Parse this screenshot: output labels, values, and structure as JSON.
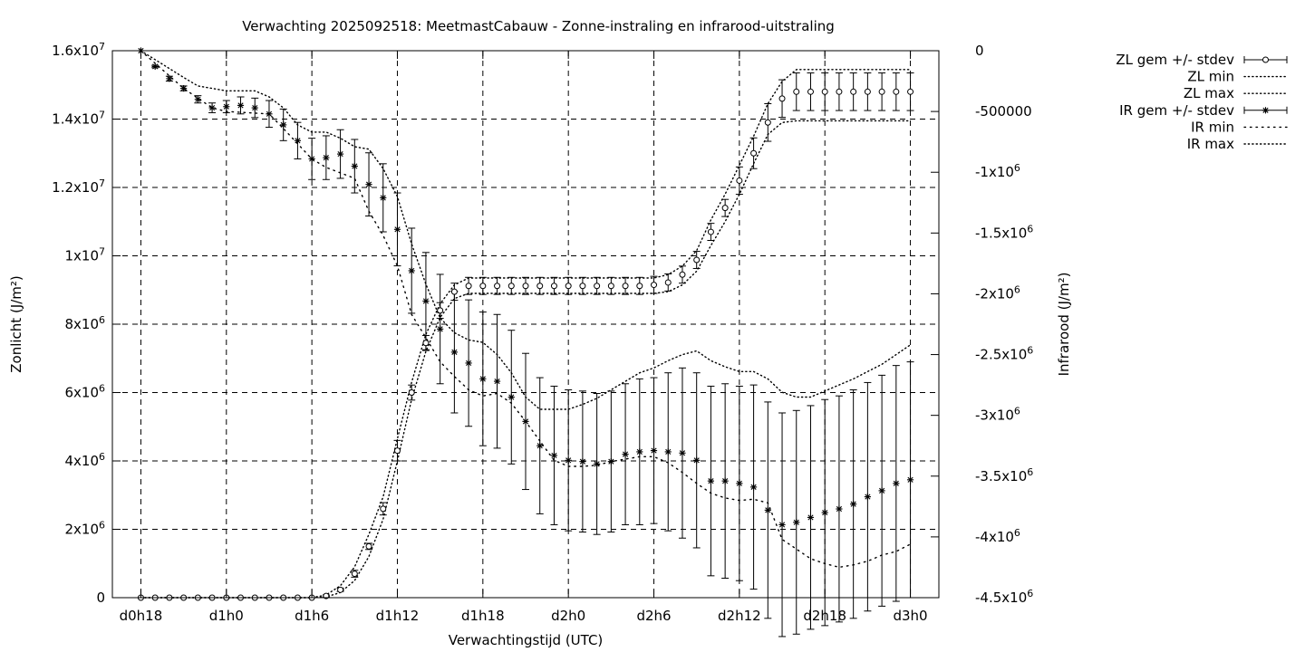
{
  "chart_data": {
    "type": "line",
    "title": "Verwachting 2025092518: MeetmastCabauw - Zonne-instraling en infrarood-uitstraling",
    "xlabel": "Verwachtingstijd (UTC)",
    "ylabel": "Zonlicht (J/m²)",
    "y2label": "Infrarood (J/m²)",
    "x_unit_hours": "lead time in hours (0 = d0h18)",
    "x_ticks": [
      {
        "x": 0,
        "label": "d0h18"
      },
      {
        "x": 6,
        "label": "d1h0"
      },
      {
        "x": 12,
        "label": "d1h6"
      },
      {
        "x": 18,
        "label": "d1h12"
      },
      {
        "x": 24,
        "label": "d1h18"
      },
      {
        "x": 30,
        "label": "d2h0"
      },
      {
        "x": 36,
        "label": "d2h6"
      },
      {
        "x": 42,
        "label": "d2h12"
      },
      {
        "x": 48,
        "label": "d2h18"
      },
      {
        "x": 54,
        "label": "d3h0"
      }
    ],
    "xlim": [
      -2,
      56
    ],
    "ylim": [
      0,
      16000000
    ],
    "y2lim": [
      -4500000,
      0
    ],
    "y_ticks": [
      {
        "v": 0,
        "label": "0"
      },
      {
        "v": 2000000,
        "label": "2x10⁶"
      },
      {
        "v": 4000000,
        "label": "4x10⁶"
      },
      {
        "v": 6000000,
        "label": "6x10⁶"
      },
      {
        "v": 8000000,
        "label": "8x10⁶"
      },
      {
        "v": 10000000,
        "label": "1x10⁷"
      },
      {
        "v": 12000000,
        "label": "1.2x10⁷"
      },
      {
        "v": 14000000,
        "label": "1.4x10⁷"
      },
      {
        "v": 16000000,
        "label": "1.6x10⁷"
      }
    ],
    "y2_ticks": [
      {
        "v": 0,
        "label": "0"
      },
      {
        "v": -500000,
        "label": "-500000"
      },
      {
        "v": -1000000,
        "label": "-1x10⁶"
      },
      {
        "v": -1500000,
        "label": "-1.5x10⁶"
      },
      {
        "v": -2000000,
        "label": "-2x10⁶"
      },
      {
        "v": -2500000,
        "label": "-2.5x10⁶"
      },
      {
        "v": -3000000,
        "label": "-3x10⁶"
      },
      {
        "v": -3500000,
        "label": "-3.5x10⁶"
      },
      {
        "v": -4000000,
        "label": "-4x10⁶"
      },
      {
        "v": -4500000,
        "label": "-4.5x10⁶"
      }
    ],
    "grid": true,
    "legend": "top-right",
    "legend_entries": [
      {
        "label": "ZL gem +/- stdev",
        "style": "errorbar-circle"
      },
      {
        "label": "ZL min",
        "style": "dotted"
      },
      {
        "label": "ZL max",
        "style": "dotted"
      },
      {
        "label": "IR gem +/- stdev",
        "style": "errorbar-star"
      },
      {
        "label": "IR min",
        "style": "dotted-sparse"
      },
      {
        "label": "IR max",
        "style": "dotted"
      }
    ],
    "series": [
      {
        "name": "ZL gem +/- stdev",
        "axis": "y",
        "marker": "circle",
        "x": [
          0,
          1,
          2,
          3,
          4,
          5,
          6,
          7,
          8,
          9,
          10,
          11,
          12,
          13,
          14,
          15,
          16,
          17,
          18,
          19,
          20,
          21,
          22,
          23,
          24,
          25,
          26,
          27,
          28,
          29,
          30,
          31,
          32,
          33,
          34,
          35,
          36,
          37,
          38,
          39,
          40,
          41,
          42,
          43,
          44,
          45,
          46,
          47,
          48,
          49,
          50,
          51,
          52,
          53,
          54
        ],
        "values": [
          0,
          0,
          0,
          0,
          0,
          0,
          0,
          0,
          0,
          0,
          0,
          0,
          0,
          50000,
          230000,
          700000,
          1500000,
          2600000,
          4300000,
          6000000,
          7450000,
          8400000,
          8950000,
          9120000,
          9120000,
          9120000,
          9120000,
          9120000,
          9120000,
          9120000,
          9120000,
          9120000,
          9120000,
          9120000,
          9120000,
          9120000,
          9150000,
          9220000,
          9450000,
          9880000,
          10700000,
          11400000,
          12200000,
          13000000,
          13900000,
          14600000,
          14800000,
          14800000,
          14800000,
          14800000,
          14800000,
          14800000,
          14800000,
          14800000,
          14800000
        ],
        "stdev": [
          0,
          0,
          0,
          0,
          0,
          0,
          0,
          0,
          0,
          0,
          0,
          0,
          0,
          30000,
          50000,
          100000,
          90000,
          180000,
          300000,
          220000,
          220000,
          230000,
          250000,
          250000,
          250000,
          250000,
          250000,
          250000,
          250000,
          250000,
          250000,
          250000,
          250000,
          250000,
          250000,
          250000,
          250000,
          250000,
          250000,
          250000,
          250000,
          250000,
          400000,
          450000,
          550000,
          550000,
          550000,
          550000,
          550000,
          550000,
          550000,
          550000,
          550000,
          550000,
          550000
        ]
      },
      {
        "name": "ZL min",
        "axis": "y",
        "x": [
          0,
          6,
          12,
          13,
          14,
          15,
          16,
          17,
          18,
          19,
          20,
          21,
          22,
          23,
          24,
          30,
          36,
          37,
          38,
          39,
          40,
          41,
          42,
          43,
          44,
          45,
          46,
          48,
          50,
          52,
          54
        ],
        "values": [
          0,
          0,
          0,
          20000,
          150000,
          500000,
          1200000,
          2300000,
          4000000,
          5800000,
          7200000,
          8200000,
          8750000,
          8900000,
          8900000,
          8900000,
          8900000,
          8950000,
          9150000,
          9550000,
          10300000,
          11000000,
          11800000,
          12700000,
          13550000,
          13900000,
          13950000,
          13950000,
          13950000,
          13950000,
          13950000
        ]
      },
      {
        "name": "ZL max",
        "axis": "y",
        "x": [
          0,
          6,
          12,
          13,
          14,
          15,
          16,
          17,
          18,
          19,
          20,
          21,
          22,
          23,
          24,
          30,
          36,
          37,
          38,
          39,
          40,
          41,
          42,
          43,
          44,
          45,
          46,
          48,
          50,
          52,
          54
        ],
        "values": [
          0,
          0,
          0,
          80000,
          350000,
          900000,
          1850000,
          2950000,
          4650000,
          6300000,
          7700000,
          8600000,
          9150000,
          9350000,
          9350000,
          9350000,
          9350000,
          9450000,
          9700000,
          10150000,
          11050000,
          11800000,
          12650000,
          13500000,
          14450000,
          15100000,
          15450000,
          15450000,
          15450000,
          15450000,
          15450000
        ]
      },
      {
        "name": "IR gem +/- stdev",
        "axis": "y2",
        "marker": "star",
        "x": [
          0,
          1,
          2,
          3,
          4,
          5,
          6,
          7,
          8,
          9,
          10,
          11,
          12,
          13,
          14,
          15,
          16,
          17,
          18,
          19,
          20,
          21,
          22,
          23,
          24,
          25,
          26,
          27,
          28,
          29,
          30,
          31,
          32,
          33,
          34,
          35,
          36,
          37,
          38,
          39,
          40,
          41,
          42,
          43,
          44,
          45,
          46,
          47,
          48,
          49,
          50,
          51,
          52,
          53,
          54
        ],
        "values": [
          0,
          -130000,
          -230000,
          -310000,
          -400000,
          -470000,
          -460000,
          -450000,
          -470000,
          -520000,
          -610000,
          -740000,
          -890000,
          -880000,
          -850000,
          -950000,
          -1100000,
          -1210000,
          -1470000,
          -1810000,
          -2060000,
          -2290000,
          -2480000,
          -2570000,
          -2700000,
          -2720000,
          -2850000,
          -3050000,
          -3250000,
          -3330000,
          -3370000,
          -3380000,
          -3400000,
          -3380000,
          -3320000,
          -3300000,
          -3290000,
          -3300000,
          -3310000,
          -3370000,
          -3540000,
          -3540000,
          -3560000,
          -3590000,
          -3780000,
          -3900000,
          -3880000,
          -3840000,
          -3800000,
          -3770000,
          -3730000,
          -3670000,
          -3620000,
          -3560000,
          -3530000
        ],
        "stdev": [
          0,
          10000,
          20000,
          20000,
          30000,
          40000,
          50000,
          70000,
          80000,
          110000,
          130000,
          150000,
          170000,
          180000,
          200000,
          220000,
          260000,
          280000,
          300000,
          350000,
          400000,
          450000,
          500000,
          520000,
          550000,
          550000,
          550000,
          560000,
          560000,
          570000,
          580000,
          580000,
          580000,
          580000,
          580000,
          600000,
          600000,
          650000,
          700000,
          720000,
          780000,
          800000,
          800000,
          840000,
          890000,
          920000,
          920000,
          920000,
          930000,
          930000,
          940000,
          940000,
          950000,
          970000,
          970000
        ]
      },
      {
        "name": "IR min",
        "axis": "y2",
        "x": [
          0,
          3,
          5,
          6,
          9,
          10,
          12,
          13,
          15,
          16,
          17,
          18,
          19,
          20,
          21,
          22,
          23,
          24,
          25,
          26,
          27,
          28,
          29,
          30,
          31,
          32,
          33,
          34,
          35,
          36,
          37,
          38,
          39,
          40,
          41,
          42,
          43,
          44,
          45,
          46,
          47,
          48,
          49,
          50,
          51,
          52,
          53,
          54
        ],
        "values": [
          0,
          -310000,
          -470000,
          -500000,
          -520000,
          -640000,
          -890000,
          -960000,
          -1050000,
          -1320000,
          -1520000,
          -1770000,
          -2170000,
          -2360000,
          -2560000,
          -2680000,
          -2790000,
          -2840000,
          -2820000,
          -2900000,
          -3050000,
          -3210000,
          -3370000,
          -3420000,
          -3420000,
          -3410000,
          -3380000,
          -3360000,
          -3340000,
          -3340000,
          -3390000,
          -3470000,
          -3560000,
          -3640000,
          -3680000,
          -3700000,
          -3690000,
          -3720000,
          -4020000,
          -4100000,
          -4180000,
          -4220000,
          -4250000,
          -4230000,
          -4200000,
          -4150000,
          -4120000,
          -4060000
        ]
      },
      {
        "name": "IR max",
        "axis": "y2",
        "x": [
          0,
          3,
          4,
          6,
          8,
          9,
          10,
          11,
          12,
          13,
          14,
          15,
          16,
          17,
          18,
          19,
          20,
          21,
          22,
          23,
          24,
          25,
          26,
          27,
          28,
          29,
          30,
          31,
          32,
          33,
          34,
          35,
          36,
          37,
          38,
          39,
          40,
          41,
          42,
          43,
          44,
          45,
          46,
          47,
          48,
          49,
          50,
          51,
          52,
          53,
          54
        ],
        "values": [
          0,
          -220000,
          -290000,
          -330000,
          -330000,
          -380000,
          -470000,
          -610000,
          -670000,
          -670000,
          -720000,
          -790000,
          -810000,
          -970000,
          -1200000,
          -1590000,
          -1920000,
          -2200000,
          -2320000,
          -2380000,
          -2400000,
          -2500000,
          -2650000,
          -2850000,
          -2950000,
          -2950000,
          -2950000,
          -2910000,
          -2860000,
          -2790000,
          -2720000,
          -2650000,
          -2610000,
          -2550000,
          -2500000,
          -2470000,
          -2550000,
          -2600000,
          -2640000,
          -2640000,
          -2700000,
          -2810000,
          -2850000,
          -2850000,
          -2800000,
          -2750000,
          -2700000,
          -2640000,
          -2580000,
          -2500000,
          -2420000
        ]
      }
    ]
  }
}
